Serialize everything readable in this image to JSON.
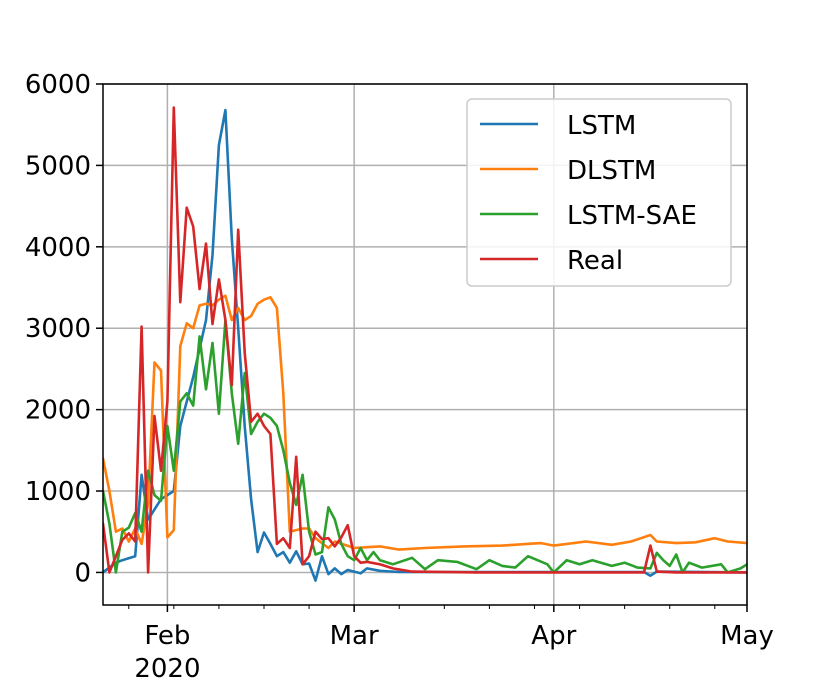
{
  "chart_data": {
    "type": "line",
    "title": "",
    "xlabel": "",
    "ylabel": "",
    "x_start": "2020-01-22",
    "x_end": "2020-05-01",
    "ylim": [
      -400,
      6000
    ],
    "y_ticks": [
      {
        "value": 0,
        "label": "0"
      },
      {
        "value": 1000,
        "label": "1000"
      },
      {
        "value": 2000,
        "label": "2000"
      },
      {
        "value": 3000,
        "label": "3000"
      },
      {
        "value": 4000,
        "label": "4000"
      },
      {
        "value": 5000,
        "label": "5000"
      },
      {
        "value": 6000,
        "label": "6000"
      }
    ],
    "x_ticks": [
      {
        "date": "2020-02-01",
        "label": "Feb",
        "sublabel": "2020"
      },
      {
        "date": "2020-03-01",
        "label": "Mar",
        "sublabel": ""
      },
      {
        "date": "2020-04-01",
        "label": "Apr",
        "sublabel": ""
      },
      {
        "date": "2020-05-01",
        "label": "May",
        "sublabel": ""
      }
    ],
    "grid": true,
    "legend_position": "top-right",
    "series": [
      {
        "name": "LSTM",
        "color": "#1f77b4",
        "points": [
          [
            "2020-01-22",
            0
          ],
          [
            "2020-01-23",
            60
          ],
          [
            "2020-01-24",
            120
          ],
          [
            "2020-01-25",
            150
          ],
          [
            "2020-01-27",
            200
          ],
          [
            "2020-01-28",
            1200
          ],
          [
            "2020-01-29",
            650
          ],
          [
            "2020-01-31",
            900
          ],
          [
            "2020-02-02",
            1000
          ],
          [
            "2020-02-03",
            1800
          ],
          [
            "2020-02-05",
            2400
          ],
          [
            "2020-02-07",
            3100
          ],
          [
            "2020-02-08",
            3900
          ],
          [
            "2020-02-09",
            5250
          ],
          [
            "2020-02-10",
            5680
          ],
          [
            "2020-02-11",
            4100
          ],
          [
            "2020-02-12",
            3000
          ],
          [
            "2020-02-13",
            1800
          ],
          [
            "2020-02-14",
            900
          ],
          [
            "2020-02-15",
            250
          ],
          [
            "2020-02-16",
            490
          ],
          [
            "2020-02-17",
            350
          ],
          [
            "2020-02-18",
            200
          ],
          [
            "2020-02-19",
            250
          ],
          [
            "2020-02-20",
            120
          ],
          [
            "2020-02-21",
            260
          ],
          [
            "2020-02-22",
            100
          ],
          [
            "2020-02-23",
            110
          ],
          [
            "2020-02-24",
            -100
          ],
          [
            "2020-02-25",
            200
          ],
          [
            "2020-02-26",
            -20
          ],
          [
            "2020-02-27",
            50
          ],
          [
            "2020-02-28",
            -20
          ],
          [
            "2020-02-29",
            30
          ],
          [
            "2020-03-02",
            -10
          ],
          [
            "2020-03-03",
            50
          ],
          [
            "2020-03-05",
            20
          ],
          [
            "2020-03-08",
            5
          ],
          [
            "2020-03-15",
            5
          ],
          [
            "2020-04-15",
            5
          ],
          [
            "2020-04-16",
            -40
          ],
          [
            "2020-04-17",
            10
          ],
          [
            "2020-05-01",
            0
          ]
        ]
      },
      {
        "name": "DLSTM",
        "color": "#ff7f0e",
        "points": [
          [
            "2020-01-22",
            1400
          ],
          [
            "2020-01-23",
            1000
          ],
          [
            "2020-01-24",
            500
          ],
          [
            "2020-01-25",
            540
          ],
          [
            "2020-01-26",
            380
          ],
          [
            "2020-01-27",
            540
          ],
          [
            "2020-01-28",
            350
          ],
          [
            "2020-01-29",
            850
          ],
          [
            "2020-01-30",
            2580
          ],
          [
            "2020-01-31",
            2480
          ],
          [
            "2020-02-01",
            430
          ],
          [
            "2020-02-02",
            520
          ],
          [
            "2020-02-03",
            2780
          ],
          [
            "2020-02-04",
            3060
          ],
          [
            "2020-02-05",
            3000
          ],
          [
            "2020-02-06",
            3280
          ],
          [
            "2020-02-07",
            3300
          ],
          [
            "2020-02-08",
            3280
          ],
          [
            "2020-02-09",
            3350
          ],
          [
            "2020-02-10",
            3400
          ],
          [
            "2020-02-11",
            3100
          ],
          [
            "2020-02-12",
            3250
          ],
          [
            "2020-02-13",
            3100
          ],
          [
            "2020-02-14",
            3150
          ],
          [
            "2020-02-15",
            3300
          ],
          [
            "2020-02-16",
            3350
          ],
          [
            "2020-02-17",
            3380
          ],
          [
            "2020-02-18",
            3250
          ],
          [
            "2020-02-19",
            2200
          ],
          [
            "2020-02-20",
            500
          ],
          [
            "2020-02-22",
            540
          ],
          [
            "2020-02-23",
            540
          ],
          [
            "2020-02-24",
            420
          ],
          [
            "2020-02-26",
            300
          ],
          [
            "2020-02-27",
            380
          ],
          [
            "2020-03-01",
            300
          ],
          [
            "2020-03-03",
            310
          ],
          [
            "2020-03-05",
            320
          ],
          [
            "2020-03-08",
            280
          ],
          [
            "2020-03-12",
            300
          ],
          [
            "2020-03-18",
            320
          ],
          [
            "2020-03-24",
            330
          ],
          [
            "2020-03-30",
            360
          ],
          [
            "2020-04-01",
            330
          ],
          [
            "2020-04-06",
            380
          ],
          [
            "2020-04-10",
            340
          ],
          [
            "2020-04-13",
            380
          ],
          [
            "2020-04-16",
            460
          ],
          [
            "2020-04-17",
            380
          ],
          [
            "2020-04-20",
            360
          ],
          [
            "2020-04-23",
            370
          ],
          [
            "2020-04-26",
            420
          ],
          [
            "2020-04-28",
            380
          ],
          [
            "2020-05-01",
            360
          ]
        ]
      },
      {
        "name": "LSTM-SAE",
        "color": "#2ca02c",
        "points": [
          [
            "2020-01-22",
            1000
          ],
          [
            "2020-01-23",
            600
          ],
          [
            "2020-01-24",
            0
          ],
          [
            "2020-01-25",
            500
          ],
          [
            "2020-01-26",
            550
          ],
          [
            "2020-01-27",
            730
          ],
          [
            "2020-01-28",
            500
          ],
          [
            "2020-01-29",
            1250
          ],
          [
            "2020-01-30",
            950
          ],
          [
            "2020-01-31",
            880
          ],
          [
            "2020-02-01",
            1800
          ],
          [
            "2020-02-02",
            1250
          ],
          [
            "2020-02-03",
            2100
          ],
          [
            "2020-02-04",
            2200
          ],
          [
            "2020-02-05",
            2050
          ],
          [
            "2020-02-06",
            2900
          ],
          [
            "2020-02-07",
            2250
          ],
          [
            "2020-02-08",
            2820
          ],
          [
            "2020-02-09",
            1950
          ],
          [
            "2020-02-10",
            3100
          ],
          [
            "2020-02-11",
            2200
          ],
          [
            "2020-02-12",
            1580
          ],
          [
            "2020-02-13",
            2450
          ],
          [
            "2020-02-14",
            1700
          ],
          [
            "2020-02-15",
            1850
          ],
          [
            "2020-02-16",
            1950
          ],
          [
            "2020-02-17",
            1900
          ],
          [
            "2020-02-18",
            1800
          ],
          [
            "2020-02-19",
            1500
          ],
          [
            "2020-02-20",
            1100
          ],
          [
            "2020-02-21",
            830
          ],
          [
            "2020-02-22",
            1200
          ],
          [
            "2020-02-23",
            500
          ],
          [
            "2020-02-24",
            220
          ],
          [
            "2020-02-25",
            250
          ],
          [
            "2020-02-26",
            800
          ],
          [
            "2020-02-27",
            650
          ],
          [
            "2020-02-28",
            350
          ],
          [
            "2020-02-29",
            200
          ],
          [
            "2020-03-01",
            150
          ],
          [
            "2020-03-02",
            300
          ],
          [
            "2020-03-03",
            150
          ],
          [
            "2020-03-04",
            250
          ],
          [
            "2020-03-05",
            150
          ],
          [
            "2020-03-07",
            100
          ],
          [
            "2020-03-10",
            180
          ],
          [
            "2020-03-12",
            40
          ],
          [
            "2020-03-14",
            150
          ],
          [
            "2020-03-17",
            130
          ],
          [
            "2020-03-20",
            40
          ],
          [
            "2020-03-22",
            150
          ],
          [
            "2020-03-24",
            80
          ],
          [
            "2020-03-26",
            60
          ],
          [
            "2020-03-28",
            200
          ],
          [
            "2020-03-31",
            100
          ],
          [
            "2020-04-01",
            0
          ],
          [
            "2020-04-03",
            150
          ],
          [
            "2020-04-05",
            100
          ],
          [
            "2020-04-07",
            150
          ],
          [
            "2020-04-10",
            80
          ],
          [
            "2020-04-12",
            120
          ],
          [
            "2020-04-14",
            60
          ],
          [
            "2020-04-16",
            50
          ],
          [
            "2020-04-17",
            240
          ],
          [
            "2020-04-18",
            150
          ],
          [
            "2020-04-19",
            80
          ],
          [
            "2020-04-20",
            220
          ],
          [
            "2020-04-21",
            0
          ],
          [
            "2020-04-22",
            120
          ],
          [
            "2020-04-24",
            60
          ],
          [
            "2020-04-27",
            100
          ],
          [
            "2020-04-28",
            0
          ],
          [
            "2020-04-30",
            50
          ],
          [
            "2020-05-01",
            100
          ]
        ]
      },
      {
        "name": "Real",
        "color": "#d62728",
        "points": [
          [
            "2020-01-22",
            600
          ],
          [
            "2020-01-23",
            0
          ],
          [
            "2020-01-24",
            200
          ],
          [
            "2020-01-25",
            400
          ],
          [
            "2020-01-26",
            480
          ],
          [
            "2020-01-27",
            380
          ],
          [
            "2020-01-28",
            3020
          ],
          [
            "2020-01-29",
            0
          ],
          [
            "2020-01-30",
            1920
          ],
          [
            "2020-01-31",
            1250
          ],
          [
            "2020-02-01",
            2100
          ],
          [
            "2020-02-02",
            5710
          ],
          [
            "2020-02-03",
            3320
          ],
          [
            "2020-02-04",
            4480
          ],
          [
            "2020-02-05",
            4250
          ],
          [
            "2020-02-06",
            3480
          ],
          [
            "2020-02-07",
            4040
          ],
          [
            "2020-02-08",
            3050
          ],
          [
            "2020-02-09",
            3600
          ],
          [
            "2020-02-10",
            3100
          ],
          [
            "2020-02-11",
            2300
          ],
          [
            "2020-02-12",
            4210
          ],
          [
            "2020-02-13",
            2700
          ],
          [
            "2020-02-14",
            1850
          ],
          [
            "2020-02-15",
            1950
          ],
          [
            "2020-02-16",
            1800
          ],
          [
            "2020-02-17",
            1700
          ],
          [
            "2020-02-18",
            350
          ],
          [
            "2020-02-19",
            420
          ],
          [
            "2020-02-20",
            300
          ],
          [
            "2020-02-21",
            1420
          ],
          [
            "2020-02-22",
            100
          ],
          [
            "2020-02-23",
            200
          ],
          [
            "2020-02-24",
            500
          ],
          [
            "2020-02-25",
            410
          ],
          [
            "2020-02-26",
            420
          ],
          [
            "2020-02-27",
            320
          ],
          [
            "2020-02-28",
            430
          ],
          [
            "2020-02-29",
            580
          ],
          [
            "2020-03-01",
            200
          ],
          [
            "2020-03-02",
            120
          ],
          [
            "2020-03-03",
            130
          ],
          [
            "2020-03-05",
            100
          ],
          [
            "2020-03-07",
            50
          ],
          [
            "2020-03-10",
            10
          ],
          [
            "2020-03-20",
            0
          ],
          [
            "2020-04-15",
            0
          ],
          [
            "2020-04-16",
            330
          ],
          [
            "2020-04-17",
            10
          ],
          [
            "2020-04-20",
            0
          ],
          [
            "2020-05-01",
            0
          ]
        ]
      }
    ]
  }
}
